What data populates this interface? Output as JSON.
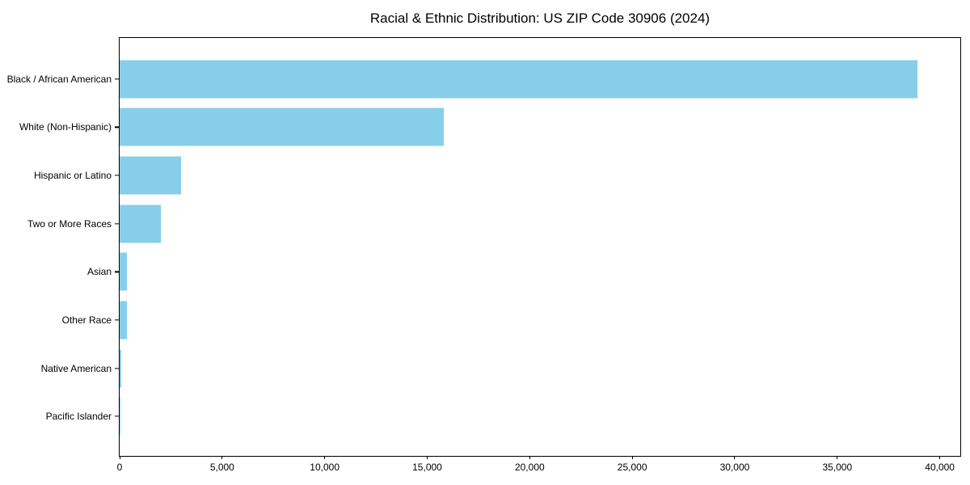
{
  "title": "Racial & Ethnic Distribution: US ZIP Code 30906 (2024)",
  "chart_data": {
    "type": "bar",
    "orientation": "horizontal",
    "title": "Racial & Ethnic Distribution: US ZIP Code 30906 (2024)",
    "categories": [
      "Black / African American",
      "White (Non-Hispanic)",
      "Hispanic or Latino",
      "Two or More Races",
      "Asian",
      "Other Race",
      "Native American",
      "Pacific Islander"
    ],
    "values": [
      38900,
      15800,
      3000,
      2000,
      350,
      340,
      60,
      20
    ],
    "xlabel": "",
    "ylabel": "",
    "xlim": [
      0,
      41000
    ],
    "xticks": [
      0,
      5000,
      10000,
      15000,
      20000,
      25000,
      30000,
      35000,
      40000
    ],
    "xtick_labels": [
      "0",
      "5,000",
      "10,000",
      "15,000",
      "20,000",
      "25,000",
      "30,000",
      "35,000",
      "40,000"
    ],
    "bar_color": "#87CEEB",
    "grid": false,
    "legend": null,
    "frame": "full-box"
  }
}
